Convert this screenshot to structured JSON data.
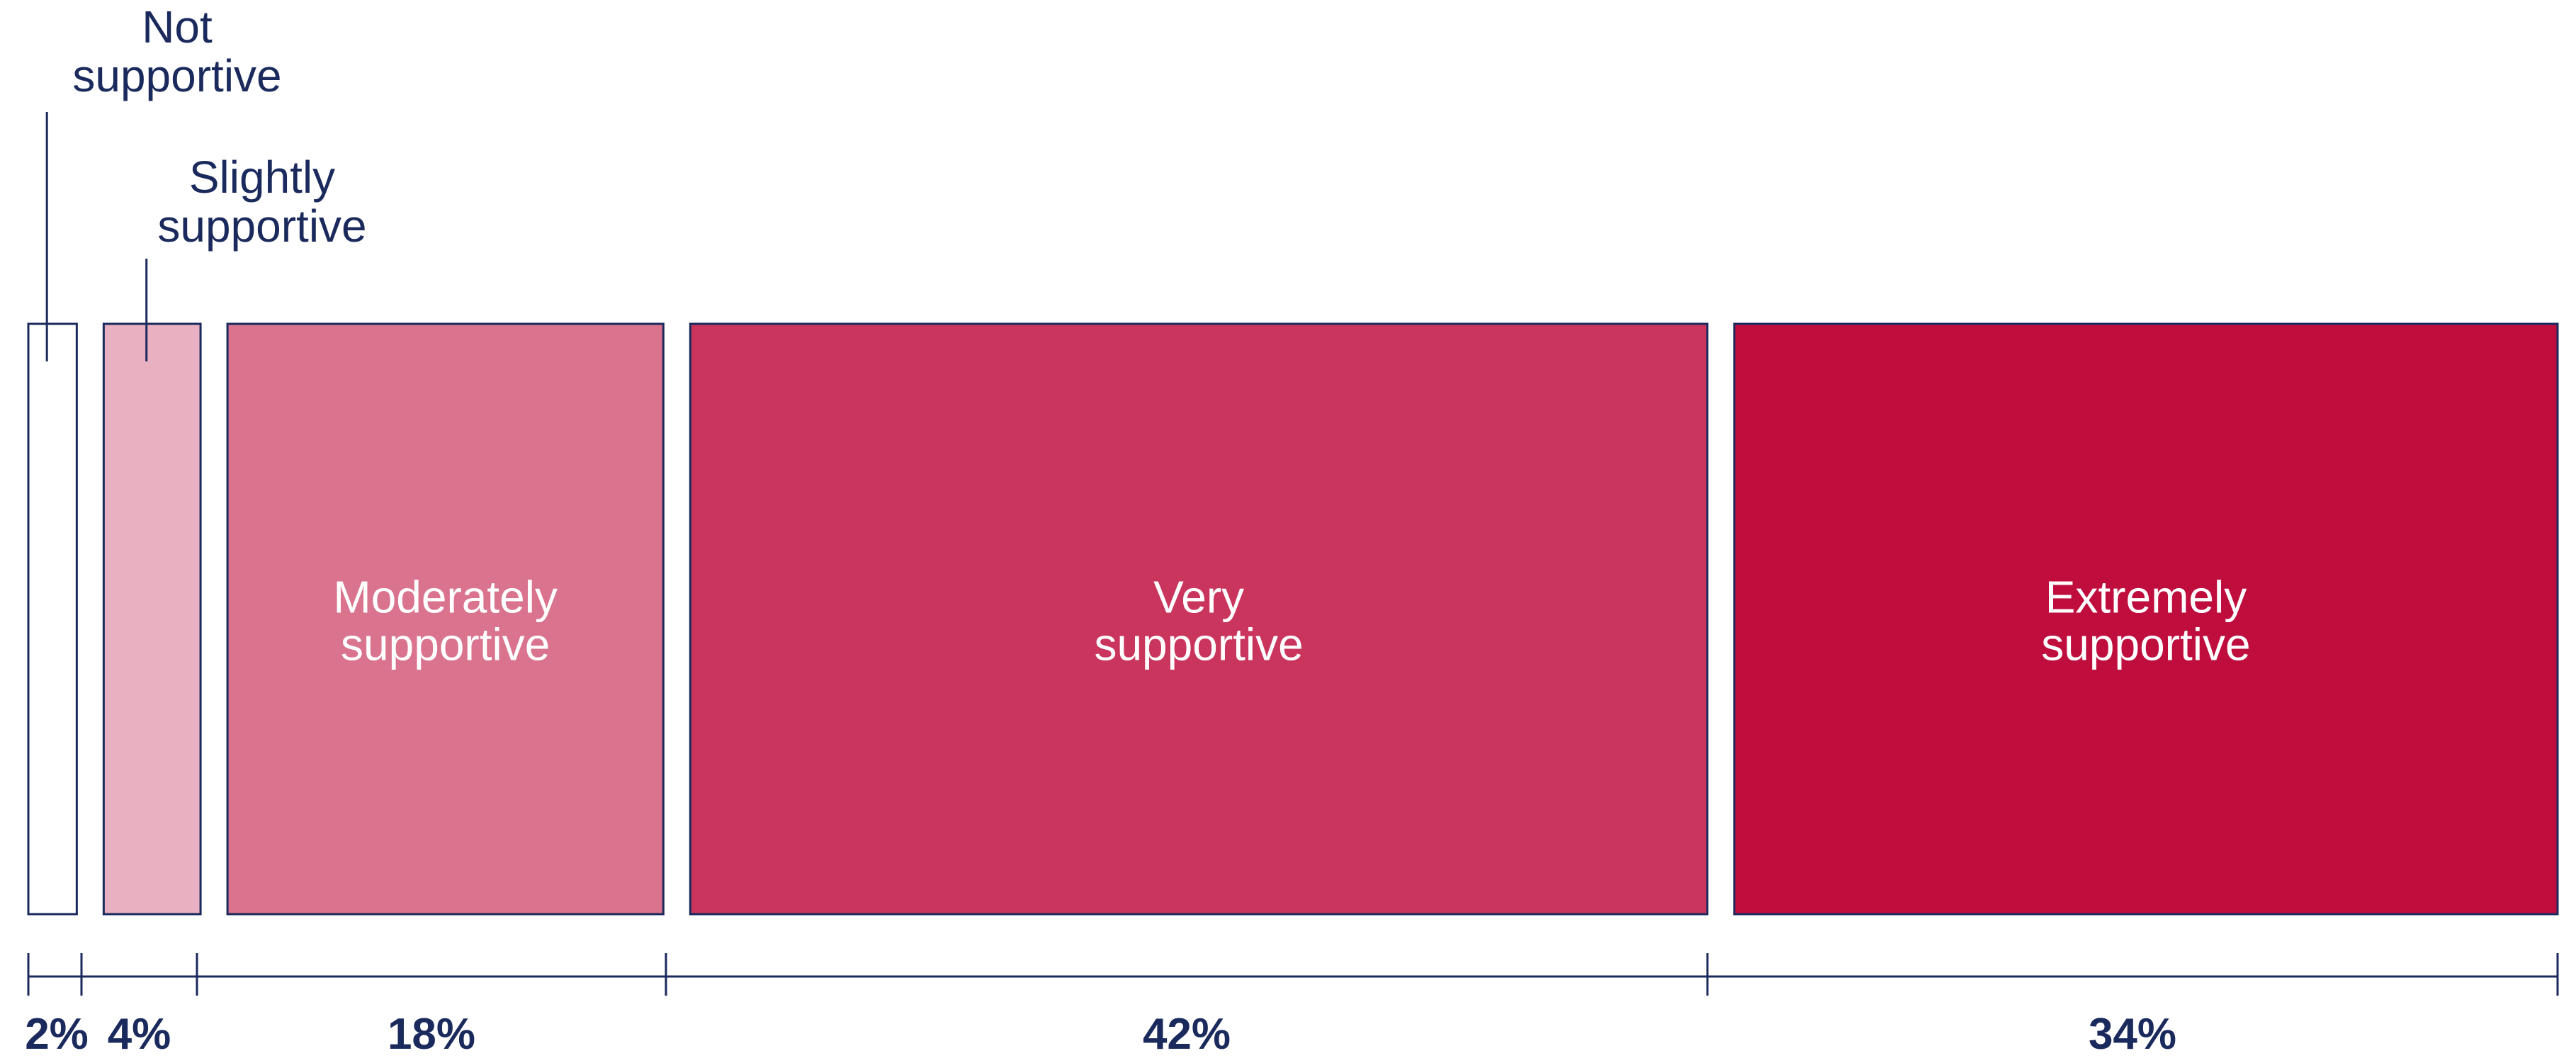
{
  "chart_data": {
    "type": "bar",
    "orientation": "horizontal-proportional",
    "categories": [
      {
        "name": "Not supportive",
        "lines": [
          "Not",
          "supportive"
        ],
        "value": 2,
        "label": "2%",
        "color": "#ffffff",
        "label_placement": "above"
      },
      {
        "name": "Slightly supportive",
        "lines": [
          "Slightly",
          "supportive"
        ],
        "value": 4,
        "label": "4%",
        "color": "#e8b0c0",
        "label_placement": "above"
      },
      {
        "name": "Moderately supportive",
        "lines": [
          "Moderately",
          "supportive"
        ],
        "value": 18,
        "label": "18%",
        "color": "#d9738e",
        "label_placement": "inside"
      },
      {
        "name": "Very supportive",
        "lines": [
          "Very",
          "supportive"
        ],
        "value": 42,
        "label": "42%",
        "color": "#c9355c",
        "label_placement": "inside"
      },
      {
        "name": "Extremely supportive",
        "lines": [
          "Extremely",
          "supportive"
        ],
        "value": 34,
        "label": "34%",
        "color": "#bf0d3e",
        "label_placement": "inside"
      }
    ],
    "total": 100,
    "legend": "none",
    "grid": false
  },
  "colors": {
    "outline": "#1b2a5c",
    "axis_text": "#1b2a5c",
    "inside_text": "#ffffff"
  }
}
